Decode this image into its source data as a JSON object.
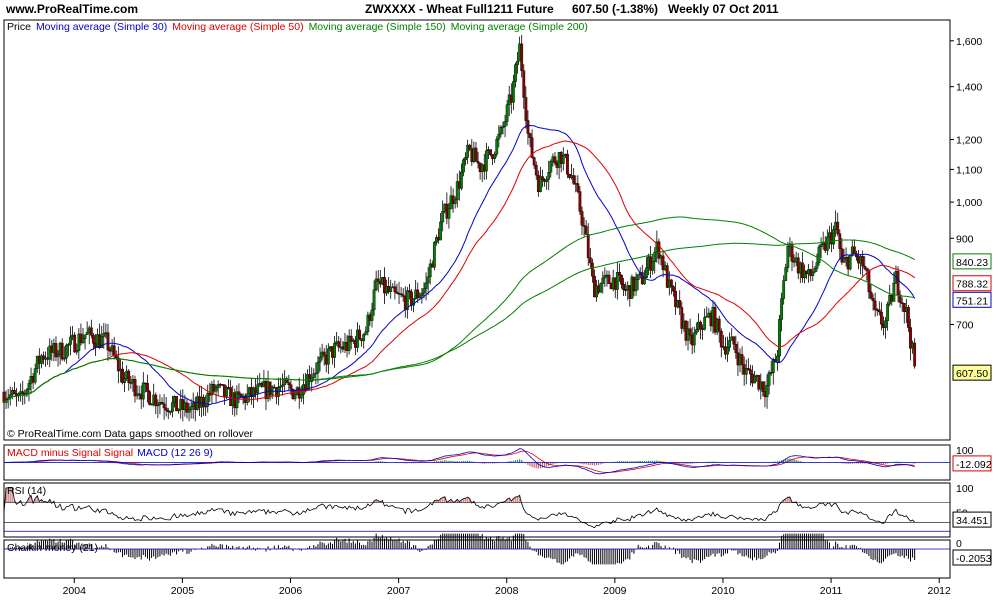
{
  "header": {
    "site": "www.ProRealTime.com",
    "instrument": "ZWXXXX - Wheat Full1211 Future",
    "quote": "607.50 (-1.38%)",
    "period": "Weekly  07 Oct 2011"
  },
  "colors": {
    "ma30": "#0000cc",
    "ma50": "#dd0000",
    "ma150": "#008000",
    "ma200": "#008000",
    "candle_up": "#008000",
    "candle_down": "#8b0000",
    "price_label_bg": "#ffff99"
  },
  "chart_data": [
    {
      "type": "candlestick",
      "name": "price",
      "legend": [
        {
          "text": "Price",
          "color": "#000000"
        },
        {
          "text": "Moving average (Simple 30)",
          "color": "#0000cc"
        },
        {
          "text": "Moving average (Simple 50)",
          "color": "#dd0000"
        },
        {
          "text": "Moving average (Simple 150)",
          "color": "#008000"
        },
        {
          "text": "Moving average (Simple 200)",
          "color": "#008000"
        }
      ],
      "footnote": "© ProRealTime.com  Data gaps smoothed on rollover",
      "scale": "log",
      "ylim": [
        500,
        1700
      ],
      "yticks": [
        "1,600",
        "1,400",
        "1,200",
        "1,100",
        "1,000",
        "900",
        "700"
      ],
      "yticks_values": [
        1600,
        1400,
        1200,
        1100,
        1000,
        900,
        700
      ],
      "xlim": [
        2003.35,
        2012.1
      ],
      "close_path": [
        [
          2003.35,
          575
        ],
        [
          2003.5,
          560
        ],
        [
          2003.7,
          640
        ],
        [
          2003.9,
          650
        ],
        [
          2004.1,
          680
        ],
        [
          2004.3,
          665
        ],
        [
          2004.45,
          600
        ],
        [
          2004.6,
          580
        ],
        [
          2004.8,
          560
        ],
        [
          2004.95,
          550
        ],
        [
          2005.1,
          545
        ],
        [
          2005.3,
          580
        ],
        [
          2005.5,
          560
        ],
        [
          2005.7,
          575
        ],
        [
          2005.9,
          585
        ],
        [
          2006.05,
          575
        ],
        [
          2006.2,
          610
        ],
        [
          2006.4,
          650
        ],
        [
          2006.55,
          660
        ],
        [
          2006.7,
          690
        ],
        [
          2006.8,
          790
        ],
        [
          2006.95,
          760
        ],
        [
          2007.1,
          750
        ],
        [
          2007.25,
          780
        ],
        [
          2007.4,
          950
        ],
        [
          2007.55,
          1050
        ],
        [
          2007.65,
          1160
        ],
        [
          2007.75,
          1110
        ],
        [
          2007.85,
          1150
        ],
        [
          2007.95,
          1220
        ],
        [
          2008.05,
          1370
        ],
        [
          2008.12,
          1570
        ],
        [
          2008.2,
          1200
        ],
        [
          2008.3,
          1050
        ],
        [
          2008.4,
          1120
        ],
        [
          2008.5,
          1150
        ],
        [
          2008.6,
          1080
        ],
        [
          2008.7,
          950
        ],
        [
          2008.8,
          780
        ],
        [
          2008.9,
          790
        ],
        [
          2009.0,
          800
        ],
        [
          2009.1,
          770
        ],
        [
          2009.25,
          800
        ],
        [
          2009.4,
          880
        ],
        [
          2009.5,
          780
        ],
        [
          2009.6,
          720
        ],
        [
          2009.7,
          660
        ],
        [
          2009.8,
          700
        ],
        [
          2009.9,
          720
        ],
        [
          2010.0,
          660
        ],
        [
          2010.1,
          660
        ],
        [
          2010.2,
          610
        ],
        [
          2010.3,
          600
        ],
        [
          2010.4,
          580
        ],
        [
          2010.5,
          640
        ],
        [
          2010.6,
          880
        ],
        [
          2010.7,
          830
        ],
        [
          2010.8,
          800
        ],
        [
          2010.9,
          860
        ],
        [
          2011.05,
          930
        ],
        [
          2011.1,
          830
        ],
        [
          2011.2,
          860
        ],
        [
          2011.3,
          830
        ],
        [
          2011.4,
          720
        ],
        [
          2011.5,
          700
        ],
        [
          2011.6,
          800
        ],
        [
          2011.7,
          720
        ],
        [
          2011.78,
          607.5
        ]
      ],
      "moving_averages": [
        {
          "name": "Moving average (Simple 30)",
          "period": 30,
          "last": "751.21",
          "color": "#0000cc"
        },
        {
          "name": "Moving average (Simple 50)",
          "period": 50,
          "last": "788.32",
          "color": "#dd0000"
        },
        {
          "name": "Moving average (Simple 150)",
          "period": 150,
          "last": "840.23",
          "color": "#008000"
        },
        {
          "name": "Moving average (Simple 200)",
          "period": 200,
          "last": "",
          "color": "#008000"
        }
      ],
      "last_price": "607.50"
    },
    {
      "type": "line",
      "name": "macd",
      "legend": [
        {
          "text": "MACD minus Signal Signal",
          "color": "#dd0000"
        },
        {
          "text": "MACD (12 26 9)",
          "color": "#0000cc"
        }
      ],
      "ytick": "100",
      "ytick_value": 100,
      "ylim": [
        -150,
        150
      ],
      "last": "-12.092"
    },
    {
      "type": "line",
      "name": "rsi",
      "legend": [
        {
          "text": "RSI (14)",
          "color": "#000000"
        }
      ],
      "yticks": [
        "100",
        "50"
      ],
      "yticks_values": [
        100,
        50
      ],
      "ylim": [
        0,
        110
      ],
      "bands": [
        70,
        30
      ],
      "last": "34.451"
    },
    {
      "type": "bar",
      "name": "chaikin",
      "legend": [
        {
          "text": "Chaikin money (21)",
          "color": "#000000"
        }
      ],
      "ytick": "0",
      "ytick_value": 0,
      "ylim": [
        -0.6,
        0.6
      ],
      "last": "-0.2053"
    }
  ],
  "xaxis": {
    "labels": [
      "2004",
      "2005",
      "2006",
      "2007",
      "2008",
      "2009",
      "2010",
      "2011",
      "2012"
    ],
    "values": [
      2004,
      2005,
      2006,
      2007,
      2008,
      2009,
      2010,
      2011,
      2012
    ]
  }
}
